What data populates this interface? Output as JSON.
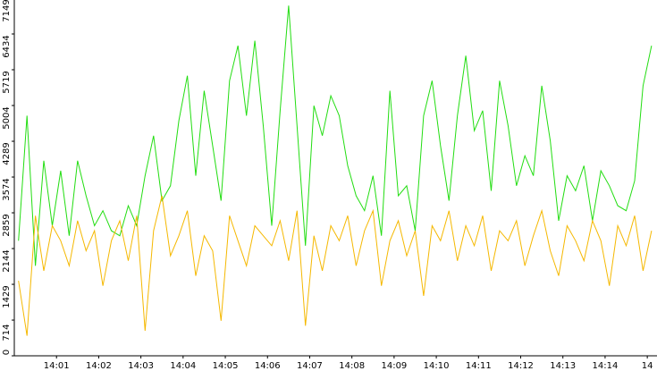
{
  "chart_data": {
    "type": "line",
    "x": [
      0.1,
      0.3,
      0.5,
      0.7,
      0.9,
      1.1,
      1.3,
      1.5,
      1.7,
      1.9,
      2.1,
      2.3,
      2.5,
      2.7,
      2.9,
      3.1,
      3.3,
      3.5,
      3.7,
      3.9,
      4.1,
      4.3,
      4.5,
      4.7,
      4.9,
      5.1,
      5.3,
      5.5,
      5.7,
      5.9,
      6.1,
      6.3,
      6.5,
      6.7,
      6.9,
      7.1,
      7.3,
      7.5,
      7.7,
      7.9,
      8.1,
      8.3,
      8.5,
      8.7,
      8.9,
      9.1,
      9.3,
      9.5,
      9.7,
      9.9,
      10.1,
      10.3,
      10.5,
      10.7,
      10.9,
      11.1,
      11.3,
      11.5,
      11.7,
      11.9,
      12.1,
      12.3,
      12.5,
      12.7,
      12.9,
      13.1,
      13.3,
      13.5,
      13.7,
      13.9,
      14.1,
      14.3,
      14.5,
      14.7,
      14.9,
      15.1
    ],
    "series": [
      {
        "color": "#22dd11",
        "values": [
          2300,
          4800,
          1800,
          3900,
          2600,
          3700,
          2400,
          3900,
          3200,
          2600,
          2900,
          2500,
          2400,
          3000,
          2600,
          3600,
          4400,
          3100,
          3400,
          4700,
          5600,
          3600,
          5300,
          4200,
          3100,
          5500,
          6200,
          4800,
          6300,
          4600,
          2600,
          4900,
          7000,
          4600,
          2200,
          5000,
          4400,
          5200,
          4800,
          3800,
          3200,
          2900,
          3600,
          2400,
          5300,
          3200,
          3400,
          2500,
          4800,
          5500,
          4200,
          3100,
          4800,
          6000,
          4500,
          4900,
          3300,
          5500,
          4600,
          3400,
          4000,
          3600,
          5400,
          4300,
          2700,
          3600,
          3300,
          3800,
          2700,
          3700,
          3400,
          3000,
          2900,
          3500,
          5400,
          6200
        ]
      },
      {
        "color": "#f5b800",
        "values": [
          1500,
          400,
          2800,
          1700,
          2600,
          2300,
          1800,
          2700,
          2100,
          2500,
          1400,
          2300,
          2700,
          1900,
          2800,
          500,
          2500,
          3200,
          2000,
          2400,
          2900,
          1600,
          2400,
          2100,
          700,
          2800,
          2300,
          1800,
          2600,
          2400,
          2200,
          2700,
          1900,
          2900,
          600,
          2400,
          1700,
          2600,
          2300,
          2800,
          1800,
          2500,
          2900,
          1400,
          2300,
          2700,
          2000,
          2500,
          1200,
          2600,
          2300,
          2900,
          1900,
          2600,
          2200,
          2800,
          1700,
          2500,
          2300,
          2700,
          1800,
          2400,
          2900,
          2100,
          1600,
          2600,
          2300,
          1900,
          2700,
          2300,
          1400,
          2600,
          2200,
          2800,
          1700,
          2500
        ]
      }
    ],
    "xlim": [
      0,
      15.23
    ],
    "xticks": [
      {
        "value": 1,
        "label": "14:01"
      },
      {
        "value": 2,
        "label": "14:02"
      },
      {
        "value": 3,
        "label": "14:03"
      },
      {
        "value": 4,
        "label": "14:04"
      },
      {
        "value": 5,
        "label": "14:05"
      },
      {
        "value": 6,
        "label": "14:06"
      },
      {
        "value": 7,
        "label": "14:07"
      },
      {
        "value": 8,
        "label": "14:08"
      },
      {
        "value": 9,
        "label": "14:09"
      },
      {
        "value": 10,
        "label": "14:10"
      },
      {
        "value": 11,
        "label": "14:11"
      },
      {
        "value": 12,
        "label": "14:12"
      },
      {
        "value": 13,
        "label": "14:13"
      },
      {
        "value": 14,
        "label": "14:14"
      },
      {
        "value": 15,
        "label": "14"
      }
    ],
    "ylim": [
      0,
      7149
    ],
    "yticks": [
      0,
      714,
      1429,
      2144,
      2859,
      3574,
      4289,
      5004,
      5719,
      6434,
      7149
    ]
  }
}
